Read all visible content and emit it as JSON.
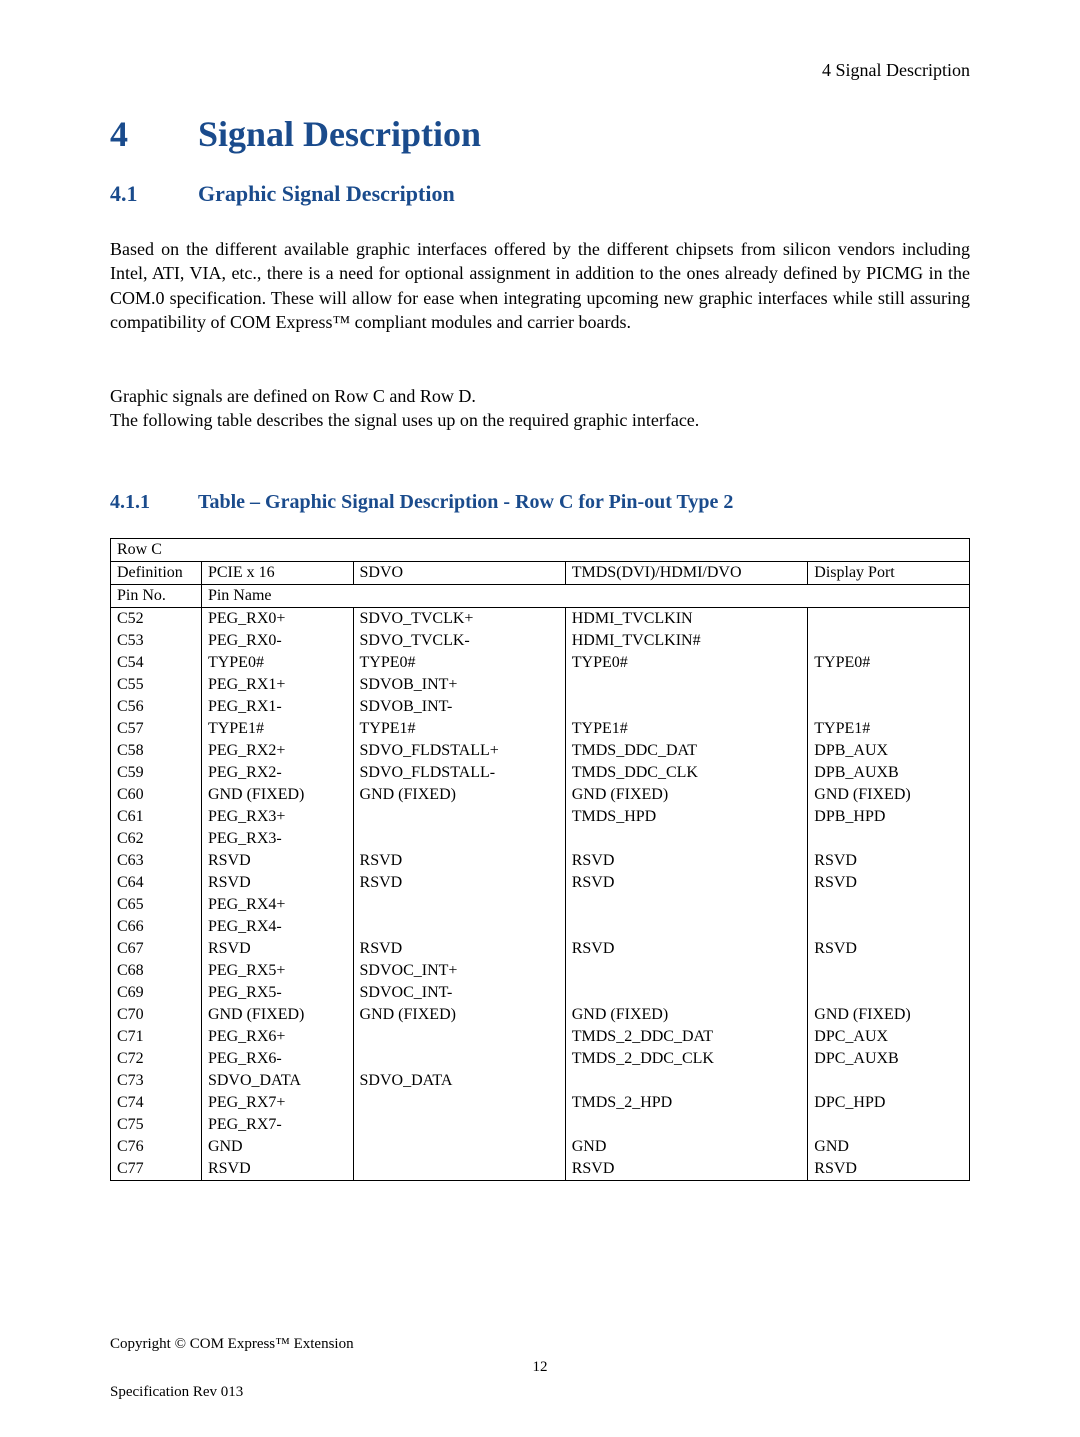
{
  "headerText": "4 Signal Description",
  "chapter": {
    "num": "4",
    "title": "Signal Description"
  },
  "section": {
    "num": "4.1",
    "title": "Graphic Signal Description"
  },
  "para1": "Based on the different available graphic interfaces offered by the different chipsets from silicon vendors including Intel, ATI, VIA, etc., there is a need for optional assignment in addition to the ones already defined by PICMG in the COM.0 specification.  These will allow for ease when integrating upcoming new graphic interfaces while still assuring compatibility of COM Express™ compliant modules and carrier boards.",
  "para2a": "Graphic signals are defined on Row C and Row D.",
  "para2b": "The following table describes the signal uses up on the required graphic interface.",
  "subsection": {
    "num": "4.1.1",
    "title": "Table – Graphic Signal Description - Row C for Pin-out Type 2"
  },
  "table": {
    "rowLabel": "Row C",
    "header": {
      "definition": "Definition",
      "pcie": "PCIE x 16",
      "sdvo": "SDVO",
      "tmds": "TMDS(DVI)/HDMI/DVO",
      "dp": "Display Port"
    },
    "subheader": {
      "pinno": "Pin No.",
      "pinname": "Pin Name"
    },
    "rows": [
      {
        "pin": "C52",
        "pcie": "PEG_RX0+",
        "sdvo": "SDVO_TVCLK+",
        "tmds": "HDMI_TVCLKIN",
        "dp": ""
      },
      {
        "pin": "C53",
        "pcie": "PEG_RX0-",
        "sdvo": "SDVO_TVCLK-",
        "tmds": "HDMI_TVCLKIN#",
        "dp": ""
      },
      {
        "pin": "C54",
        "pcie": "TYPE0#",
        "sdvo": "TYPE0#",
        "tmds": "TYPE0#",
        "dp": "TYPE0#"
      },
      {
        "pin": "C55",
        "pcie": "PEG_RX1+",
        "sdvo": "SDVOB_INT+",
        "tmds": "",
        "dp": ""
      },
      {
        "pin": "C56",
        "pcie": "PEG_RX1-",
        "sdvo": "SDVOB_INT-",
        "tmds": "",
        "dp": ""
      },
      {
        "pin": "C57",
        "pcie": "TYPE1#",
        "sdvo": "TYPE1#",
        "tmds": "TYPE1#",
        "dp": "TYPE1#"
      },
      {
        "pin": "C58",
        "pcie": "PEG_RX2+",
        "sdvo": "SDVO_FLDSTALL+",
        "tmds": "TMDS_DDC_DAT",
        "dp": "DPB_AUX"
      },
      {
        "pin": "C59",
        "pcie": "PEG_RX2-",
        "sdvo": "SDVO_FLDSTALL-",
        "tmds": "TMDS_DDC_CLK",
        "dp": "DPB_AUXB"
      },
      {
        "pin": "C60",
        "pcie": "GND (FIXED)",
        "sdvo": "GND (FIXED)",
        "tmds": "GND (FIXED)",
        "dp": "GND (FIXED)"
      },
      {
        "pin": "C61",
        "pcie": "PEG_RX3+",
        "sdvo": "",
        "tmds": "TMDS_HPD",
        "dp": "DPB_HPD"
      },
      {
        "pin": "C62",
        "pcie": "PEG_RX3-",
        "sdvo": "",
        "tmds": "",
        "dp": ""
      },
      {
        "pin": "C63",
        "pcie": "RSVD",
        "sdvo": "RSVD",
        "tmds": "RSVD",
        "dp": "RSVD"
      },
      {
        "pin": "C64",
        "pcie": "RSVD",
        "sdvo": "RSVD",
        "tmds": "RSVD",
        "dp": "RSVD"
      },
      {
        "pin": "C65",
        "pcie": "PEG_RX4+",
        "sdvo": "",
        "tmds": "",
        "dp": ""
      },
      {
        "pin": "C66",
        "pcie": "PEG_RX4-",
        "sdvo": "",
        "tmds": "",
        "dp": ""
      },
      {
        "pin": "C67",
        "pcie": "RSVD",
        "sdvo": "RSVD",
        "tmds": "RSVD",
        "dp": "RSVD"
      },
      {
        "pin": "C68",
        "pcie": "PEG_RX5+",
        "sdvo": "SDVOC_INT+",
        "tmds": "",
        "dp": ""
      },
      {
        "pin": "C69",
        "pcie": "PEG_RX5-",
        "sdvo": "SDVOC_INT-",
        "tmds": "",
        "dp": ""
      },
      {
        "pin": "C70",
        "pcie": "GND (FIXED)",
        "sdvo": "GND (FIXED)",
        "tmds": "GND (FIXED)",
        "dp": "GND (FIXED)"
      },
      {
        "pin": "C71",
        "pcie": "PEG_RX6+",
        "sdvo": "",
        "tmds": "TMDS_2_DDC_DAT",
        "dp": "DPC_AUX"
      },
      {
        "pin": "C72",
        "pcie": "PEG_RX6-",
        "sdvo": "",
        "tmds": "TMDS_2_DDC_CLK",
        "dp": "DPC_AUXB"
      },
      {
        "pin": "C73",
        "pcie": "SDVO_DATA",
        "sdvo": "SDVO_DATA",
        "tmds": "",
        "dp": ""
      },
      {
        "pin": "C74",
        "pcie": "PEG_RX7+",
        "sdvo": "",
        "tmds": "TMDS_2_HPD",
        "dp": "DPC_HPD"
      },
      {
        "pin": "C75",
        "pcie": "PEG_RX7-",
        "sdvo": "",
        "tmds": "",
        "dp": ""
      },
      {
        "pin": "C76",
        "pcie": "GND",
        "sdvo": "",
        "tmds": "GND",
        "dp": "GND"
      },
      {
        "pin": "C77",
        "pcie": "RSVD",
        "sdvo": "",
        "tmds": "RSVD",
        "dp": "RSVD"
      }
    ]
  },
  "footer": {
    "copyright": "Copyright © COM Express™ Extension",
    "pageNumber": "12",
    "spec": "Specification Rev 013"
  }
}
